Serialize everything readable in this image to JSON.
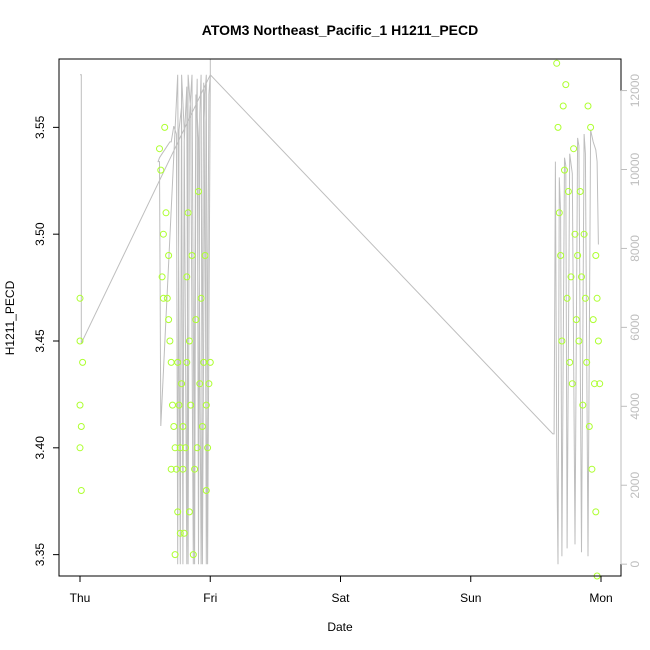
{
  "chart_data": {
    "type": "scatter",
    "title": "ATOM3 Northeast_Pacific_1 H1211_PECD",
    "xlabel": "Date",
    "ylabel": "H1211_PECD",
    "x_ticks": [
      "Thu",
      "Fri",
      "Sat",
      "Sun",
      "Mon"
    ],
    "y_ticks": [
      "3.35",
      "3.40",
      "3.45",
      "3.50",
      "3.55"
    ],
    "y2_ticks": [
      "0",
      "2000",
      "4000",
      "6000",
      "8000",
      "10000",
      "12000"
    ],
    "xlim": [
      -0.1,
      4.1
    ],
    "ylim": [
      3.34,
      3.582
    ],
    "y2lim": [
      -300,
      12800
    ],
    "grid": false,
    "colors": {
      "points": "#adff2f",
      "line": "#bebebe",
      "right_axis": "#bebebe"
    },
    "series": [
      {
        "kind": "points",
        "x": [
          0.0,
          0.0,
          0.0,
          0.0,
          0.01,
          0.01,
          0.02,
          0.61,
          0.62,
          0.63,
          0.64,
          0.64,
          0.65,
          0.66,
          0.67,
          0.68,
          0.68,
          0.69,
          0.7,
          0.7,
          0.71,
          0.72,
          0.73,
          0.73,
          0.74,
          0.75,
          0.75,
          0.76,
          0.77,
          0.77,
          0.78,
          0.79,
          0.79,
          0.8,
          0.81,
          0.82,
          0.82,
          0.83,
          0.84,
          0.84,
          0.85,
          0.86,
          0.87,
          0.88,
          0.89,
          0.9,
          0.91,
          0.92,
          0.93,
          0.94,
          0.95,
          0.96,
          0.97,
          0.97,
          0.98,
          0.99,
          1.0,
          3.66,
          3.67,
          3.68,
          3.69,
          3.7,
          3.71,
          3.72,
          3.73,
          3.74,
          3.75,
          3.76,
          3.77,
          3.78,
          3.79,
          3.8,
          3.81,
          3.82,
          3.83,
          3.84,
          3.85,
          3.86,
          3.87,
          3.88,
          3.89,
          3.9,
          3.91,
          3.92,
          3.93,
          3.94,
          3.95,
          3.96,
          3.96,
          3.97,
          3.97,
          3.98,
          3.99
        ],
        "y": [
          3.47,
          3.45,
          3.42,
          3.4,
          3.38,
          3.41,
          3.44,
          3.54,
          3.53,
          3.48,
          3.47,
          3.5,
          3.55,
          3.51,
          3.47,
          3.46,
          3.49,
          3.45,
          3.44,
          3.39,
          3.42,
          3.41,
          3.4,
          3.35,
          3.39,
          3.37,
          3.44,
          3.42,
          3.36,
          3.4,
          3.43,
          3.41,
          3.39,
          3.36,
          3.4,
          3.48,
          3.44,
          3.51,
          3.37,
          3.45,
          3.42,
          3.49,
          3.35,
          3.39,
          3.46,
          3.4,
          3.52,
          3.43,
          3.47,
          3.41,
          3.44,
          3.49,
          3.42,
          3.38,
          3.4,
          3.43,
          3.44,
          3.58,
          3.55,
          3.51,
          3.49,
          3.45,
          3.56,
          3.53,
          3.57,
          3.47,
          3.52,
          3.44,
          3.48,
          3.43,
          3.54,
          3.5,
          3.46,
          3.49,
          3.45,
          3.52,
          3.48,
          3.42,
          3.5,
          3.47,
          3.44,
          3.56,
          3.41,
          3.55,
          3.39,
          3.46,
          3.43,
          3.49,
          3.37,
          3.47,
          3.34,
          3.45,
          3.43
        ],
        "y2_note": "primary axis"
      },
      {
        "kind": "line",
        "axis": "right",
        "x": [
          0.0,
          0.01,
          0.01,
          1.0,
          1.0,
          1.0,
          0.98,
          0.97,
          0.96,
          0.94,
          0.93,
          0.92,
          0.91,
          0.9,
          0.89,
          0.88,
          0.86,
          0.84,
          0.83,
          0.82,
          0.8,
          0.79,
          0.78,
          0.76,
          0.75,
          0.74,
          0.72,
          0.7,
          0.69,
          0.67,
          0.65,
          0.63,
          0.61,
          0.6,
          0.61,
          0.62,
          0.75,
          0.77,
          0.78,
          0.8,
          0.82,
          0.83,
          0.85,
          0.87,
          0.89,
          0.91,
          0.93,
          0.95,
          0.96,
          0.97,
          0.99,
          1.0,
          3.63,
          3.64,
          3.65,
          3.66,
          3.67,
          3.68,
          3.69,
          3.7,
          3.72,
          3.73,
          3.74,
          3.76,
          3.78,
          3.8,
          3.82,
          3.83,
          3.85,
          3.87,
          3.88,
          3.9,
          3.92,
          3.94,
          3.96,
          3.97,
          3.98
        ],
        "y": [
          12400,
          12400,
          5600,
          12400,
          12800,
          12400,
          0,
          12400,
          11900,
          0,
          12400,
          11400,
          0,
          12300,
          10900,
          0,
          12400,
          11300,
          0,
          12100,
          10700,
          0,
          11600,
          11000,
          0,
          10900,
          11100,
          10700,
          10700,
          10600,
          10500,
          10400,
          10300,
          10200,
          10200,
          3500,
          12400,
          0,
          12400,
          11000,
          0,
          12400,
          11500,
          0,
          11900,
          10800,
          0,
          12200,
          11200,
          0,
          11900,
          12400,
          3300,
          3300,
          10200,
          3000,
          0,
          9800,
          8900,
          200,
          10300,
          10100,
          400,
          10400,
          9900,
          500,
          10800,
          10600,
          300,
          10900,
          10400,
          200,
          11000,
          10700,
          10500,
          10200,
          8100
        ]
      }
    ]
  }
}
